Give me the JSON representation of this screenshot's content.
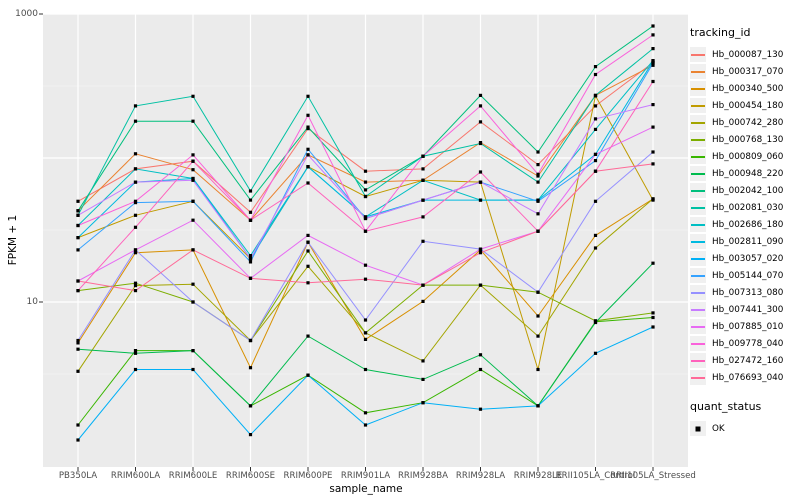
{
  "figure": {
    "y_tick_labels": [
      "1000",
      "10"
    ],
    "panel_background": "#EBEBEB",
    "gridline_color": "#FFFFFF",
    "tick_text_color": "#4D4D4D"
  },
  "legend": {
    "tracking_title": "tracking_id",
    "quant_title": "quant_status",
    "quant_items": [
      {
        "label": "OK",
        "shape": "filled-black-square"
      }
    ]
  },
  "chart_data": {
    "type": "line",
    "title": "",
    "xlabel": "sample_name",
    "ylabel": "FPKM + 1",
    "y_scale": "log10",
    "ylim": [
      1,
      1000
    ],
    "y_ticks_shown": [
      1000,
      10
    ],
    "grid": true,
    "legend_position": "right",
    "point_shape": "black-square",
    "categories": [
      "PB350LA",
      "RRIM600LA",
      "RRIM600LE",
      "RRIM600SE",
      "RRIM600PE",
      "RRIM901LA",
      "RRIM928BA",
      "RRIM928LA",
      "RRIM928LE",
      "RRII105LA_Control",
      "RRII105LA_Stressed"
    ],
    "series": [
      {
        "name": "Hb_000087_130",
        "color": "#F8766D",
        "values": [
          50,
          84,
          95,
          42,
          160,
          81,
          84,
          178,
          90,
          230,
          460
        ]
      },
      {
        "name": "Hb_000317_070",
        "color": "#EA8331",
        "values": [
          43,
          107,
          83,
          37,
          105,
          68,
          70,
          128,
          75,
          272,
          440
        ]
      },
      {
        "name": "Hb_000340_500",
        "color": "#D89000",
        "values": [
          5.2,
          22,
          23,
          3.5,
          26,
          5.5,
          10.1,
          23,
          8,
          29,
          52
        ]
      },
      {
        "name": "Hb_000454_180",
        "color": "#C09B00",
        "values": [
          28,
          40,
          50,
          20,
          87,
          54,
          70,
          68,
          3.4,
          270,
          51
        ]
      },
      {
        "name": "Hb_000742_280",
        "color": "#A3A500",
        "values": [
          3.3,
          13,
          13.3,
          5.4,
          17.7,
          6.1,
          3.9,
          13.1,
          5.8,
          23.7,
          52
        ]
      },
      {
        "name": "Hb_000768_130",
        "color": "#7CAE00",
        "values": [
          12,
          13.5,
          10,
          5.4,
          22.6,
          6.1,
          13.1,
          13.1,
          11.7,
          7.4,
          8.4
        ]
      },
      {
        "name": "Hb_000809_060",
        "color": "#39B600",
        "values": [
          1.4,
          4.6,
          4.6,
          1.9,
          3.1,
          1.7,
          2.0,
          3.4,
          1.9,
          7.3,
          7.8
        ]
      },
      {
        "name": "Hb_000948_220",
        "color": "#00BB4E",
        "values": [
          4.7,
          4.4,
          4.6,
          1.9,
          5.8,
          3.4,
          2.9,
          4.3,
          1.9,
          7.2,
          18.6
        ]
      },
      {
        "name": "Hb_002042_100",
        "color": "#00BF7D",
        "values": [
          43,
          180,
          180,
          51,
          164,
          60,
          103,
          272,
          110,
          431,
          826
        ]
      },
      {
        "name": "Hb_002081_030",
        "color": "#00C1A3",
        "values": [
          40,
          230,
          268,
          59,
          268,
          54,
          103,
          126,
          68,
          272,
          575
        ]
      },
      {
        "name": "Hb_002686_180",
        "color": "#00BFC4",
        "values": [
          34,
          84,
          72,
          21,
          87,
          39,
          70,
          51,
          51,
          158,
          475
        ]
      },
      {
        "name": "Hb_002811_090",
        "color": "#00BAE0",
        "values": [
          28,
          68,
          72,
          20,
          87,
          39,
          51,
          51,
          51,
          106,
          470
        ]
      },
      {
        "name": "Hb_003057_020",
        "color": "#00B0F6",
        "values": [
          1.1,
          3.4,
          3.4,
          1.2,
          3.1,
          1.4,
          2.0,
          1.8,
          1.9,
          4.4,
          6.7
        ]
      },
      {
        "name": "Hb_005144_070",
        "color": "#35A2FF",
        "values": [
          23,
          49,
          50,
          19,
          115,
          38,
          51,
          68,
          50,
          96,
          455
        ]
      },
      {
        "name": "Hb_007313_080",
        "color": "#9590FF",
        "values": [
          5.4,
          23,
          10,
          5.4,
          26,
          7.5,
          26.4,
          23.3,
          11.7,
          50,
          110
        ]
      },
      {
        "name": "Hb_007441_300",
        "color": "#C77CFF",
        "values": [
          40,
          68,
          70,
          20,
          105,
          38,
          51,
          68,
          41,
          187,
          235
        ]
      },
      {
        "name": "Hb_007885_010",
        "color": "#E76BF3",
        "values": [
          14,
          23,
          37,
          14.6,
          29,
          18,
          13.1,
          23.3,
          31,
          106,
          164
        ]
      },
      {
        "name": "Hb_009778_040",
        "color": "#FA62DB",
        "values": [
          34,
          50,
          105,
          37,
          198,
          31,
          103,
          230,
          77,
          380,
          716
        ]
      },
      {
        "name": "Hb_027472_160",
        "color": "#FF62BC",
        "values": [
          12,
          33,
          95,
          37,
          67,
          31,
          39,
          80,
          31,
          81,
          340
        ]
      },
      {
        "name": "Hb_076693_040",
        "color": "#FF6A98",
        "values": [
          14,
          12,
          23,
          14.6,
          13.6,
          14.4,
          13.1,
          22,
          31,
          81,
          91
        ]
      }
    ]
  }
}
